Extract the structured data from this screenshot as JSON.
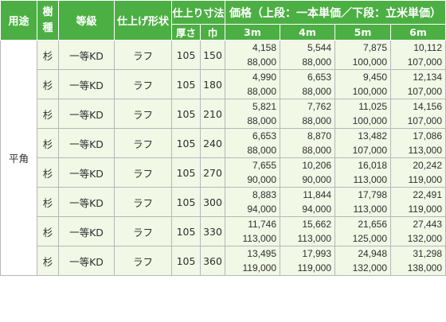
{
  "headers": {
    "use": "用途",
    "species": "樹\n種",
    "species_line1": "樹",
    "species_line2": "種",
    "grade": "等級",
    "finish": "仕上げ形状",
    "size": "仕上り寸法",
    "size_thickness": "厚さ",
    "size_width": "巾",
    "price": "価格（上段：一本単価／下段：立米単価）",
    "len_3": "3m",
    "len_4": "4m",
    "len_5": "5m",
    "len_6": "6m"
  },
  "use_label": "平角",
  "rows": [
    {
      "species": "杉",
      "grade": "一等KD",
      "finish": "ラフ",
      "thickness": "105",
      "width": "150",
      "p3": [
        "4,158",
        "88,000"
      ],
      "p4": [
        "5,544",
        "88,000"
      ],
      "p5": [
        "7,875",
        "100,000"
      ],
      "p6": [
        "10,112",
        "107,000"
      ]
    },
    {
      "species": "杉",
      "grade": "一等KD",
      "finish": "ラフ",
      "thickness": "105",
      "width": "180",
      "p3": [
        "4,990",
        "88,000"
      ],
      "p4": [
        "6,653",
        "88,000"
      ],
      "p5": [
        "9,450",
        "100,000"
      ],
      "p6": [
        "12,134",
        "107,000"
      ]
    },
    {
      "species": "杉",
      "grade": "一等KD",
      "finish": "ラフ",
      "thickness": "105",
      "width": "210",
      "p3": [
        "5,821",
        "88,000"
      ],
      "p4": [
        "7,762",
        "88,000"
      ],
      "p5": [
        "11,025",
        "100,000"
      ],
      "p6": [
        "14,156",
        "107,000"
      ]
    },
    {
      "species": "杉",
      "grade": "一等KD",
      "finish": "ラフ",
      "thickness": "105",
      "width": "240",
      "p3": [
        "6,653",
        "88,000"
      ],
      "p4": [
        "8,870",
        "88,000"
      ],
      "p5": [
        "13,482",
        "107,000"
      ],
      "p6": [
        "17,086",
        "113,000"
      ]
    },
    {
      "species": "杉",
      "grade": "一等KD",
      "finish": "ラフ",
      "thickness": "105",
      "width": "270",
      "p3": [
        "7,655",
        "90,000"
      ],
      "p4": [
        "10,206",
        "90,000"
      ],
      "p5": [
        "16,018",
        "113,000"
      ],
      "p6": [
        "20,242",
        "119,000"
      ]
    },
    {
      "species": "杉",
      "grade": "一等KD",
      "finish": "ラフ",
      "thickness": "105",
      "width": "300",
      "p3": [
        "8,883",
        "94,000"
      ],
      "p4": [
        "11,844",
        "94,000"
      ],
      "p5": [
        "17,798",
        "113,000"
      ],
      "p6": [
        "22,491",
        "119,000"
      ]
    },
    {
      "species": "杉",
      "grade": "一等KD",
      "finish": "ラフ",
      "thickness": "105",
      "width": "330",
      "p3": [
        "11,746",
        "113,000"
      ],
      "p4": [
        "15,662",
        "113,000"
      ],
      "p5": [
        "21,656",
        "125,000"
      ],
      "p6": [
        "27,443",
        "132,000"
      ]
    },
    {
      "species": "杉",
      "grade": "一等KD",
      "finish": "ラフ",
      "thickness": "105",
      "width": "360",
      "p3": [
        "13,495",
        "119,000"
      ],
      "p4": [
        "17,993",
        "119,000"
      ],
      "p5": [
        "24,948",
        "132,000"
      ],
      "p6": [
        "31,298",
        "138,000"
      ]
    }
  ]
}
